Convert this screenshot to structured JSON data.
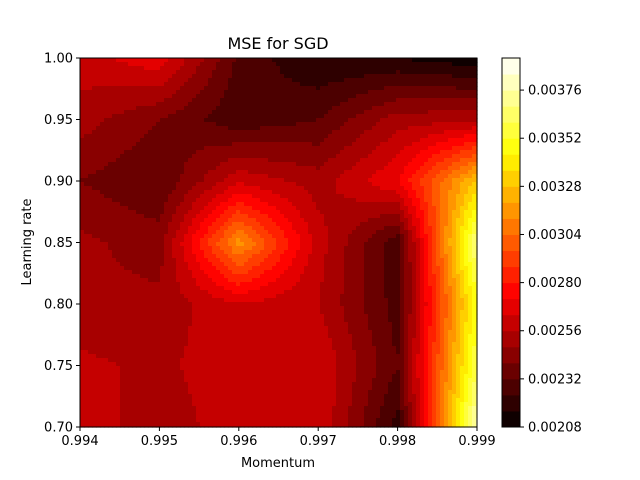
{
  "chart_data": {
    "type": "heatmap",
    "subtype": "filled-contour",
    "title": "MSE for SGD",
    "xlabel": "Momentum",
    "ylabel": "Learning rate",
    "x": [
      0.994,
      0.995,
      0.996,
      0.997,
      0.998,
      0.999
    ],
    "y": [
      0.7,
      0.75,
      0.8,
      0.85,
      0.9,
      0.95,
      1.0
    ],
    "z": [
      [
        0.00262,
        0.0025,
        0.00262,
        0.00264,
        0.0022,
        0.0038
      ],
      [
        0.00258,
        0.00254,
        0.00262,
        0.00264,
        0.00232,
        0.0036
      ],
      [
        0.0025,
        0.0025,
        0.00264,
        0.00256,
        0.00228,
        0.0035
      ],
      [
        0.0025,
        0.00244,
        0.00316,
        0.0026,
        0.00226,
        0.0037
      ],
      [
        0.0024,
        0.00232,
        0.00262,
        0.00252,
        0.00272,
        0.0033
      ],
      [
        0.00252,
        0.0024,
        0.00226,
        0.00232,
        0.00252,
        0.00254
      ],
      [
        0.0026,
        0.0027,
        0.0023,
        0.00216,
        0.00216,
        0.0021
      ]
    ],
    "xlim": [
      0.994,
      0.999
    ],
    "ylim": [
      0.7,
      1.0
    ],
    "xticks": [
      "0.994",
      "0.995",
      "0.996",
      "0.997",
      "0.998",
      "0.999"
    ],
    "yticks": [
      "0.70",
      "0.75",
      "0.80",
      "0.85",
      "0.90",
      "0.95",
      "1.00"
    ],
    "colorbar": {
      "colormap": "hot",
      "min": 0.00208,
      "max": 0.00392,
      "levels_step": 8e-05,
      "ticks": [
        "0.00208",
        "0.00232",
        "0.00256",
        "0.00280",
        "0.00304",
        "0.00328",
        "0.00352",
        "0.00376"
      ]
    },
    "grid": false,
    "legend": "none"
  }
}
